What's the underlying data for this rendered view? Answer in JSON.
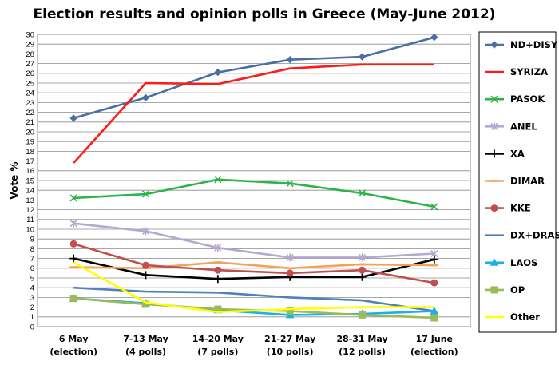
{
  "chart_data": {
    "type": "line",
    "title": "Election results and opinion polls in Greece (May-June 2012)",
    "xlabel": "",
    "ylabel": "Vote %",
    "ylim": [
      0,
      30
    ],
    "yticks": [
      0,
      1,
      2,
      3,
      4,
      5,
      6,
      7,
      8,
      9,
      10,
      11,
      12,
      13,
      14,
      15,
      16,
      17,
      18,
      19,
      20,
      21,
      22,
      23,
      24,
      25,
      26,
      27,
      28,
      29,
      30
    ],
    "grid": true,
    "legend_position": "right",
    "categories": [
      [
        "6 May",
        "(election)"
      ],
      [
        "7-13 May",
        "(4 polls)"
      ],
      [
        "14-20 May",
        "(7 polls)"
      ],
      [
        "21-27 May",
        "(10 polls)"
      ],
      [
        "28-31 May",
        "(12 polls)"
      ],
      [
        "17 June",
        "(election)"
      ]
    ],
    "series": [
      {
        "name": "ND+DISY",
        "color": "#4a6fa5",
        "marker": "diamond",
        "values": [
          21.4,
          23.5,
          26.1,
          27.4,
          27.7,
          29.7
        ]
      },
      {
        "name": "SYRIZA",
        "color": "#ff1a1a",
        "marker": "none",
        "values": [
          16.8,
          25.0,
          24.9,
          26.5,
          26.9,
          26.9
        ]
      },
      {
        "name": "PASOK",
        "color": "#2db34a",
        "marker": "x",
        "values": [
          13.2,
          13.6,
          15.1,
          14.7,
          13.7,
          12.3
        ]
      },
      {
        "name": "ANEL",
        "color": "#b7a8d0",
        "marker": "star",
        "values": [
          10.6,
          9.8,
          8.1,
          7.1,
          7.1,
          7.5
        ]
      },
      {
        "name": "XA",
        "color": "#000000",
        "marker": "plus",
        "values": [
          7.0,
          5.3,
          4.9,
          5.1,
          5.1,
          6.9
        ]
      },
      {
        "name": "DIMAR",
        "color": "#f4a25a",
        "marker": "dash",
        "values": [
          6.1,
          6.0,
          6.6,
          6.0,
          6.4,
          6.3
        ]
      },
      {
        "name": "KKE",
        "color": "#c0504d",
        "marker": "circle",
        "values": [
          8.5,
          6.3,
          5.8,
          5.5,
          5.8,
          4.5
        ]
      },
      {
        "name": "DX+DRASI",
        "color": "#4f81bd",
        "marker": "none",
        "values": [
          4.0,
          3.6,
          3.5,
          3.0,
          2.7,
          1.6
        ]
      },
      {
        "name": "LAOS",
        "color": "#1ab0e8",
        "marker": "triangle",
        "values": [
          2.9,
          2.4,
          1.7,
          1.2,
          1.3,
          1.6
        ]
      },
      {
        "name": "OP",
        "color": "#9bbb59",
        "marker": "square",
        "values": [
          2.9,
          2.3,
          1.8,
          1.6,
          1.2,
          0.9
        ]
      },
      {
        "name": "Other",
        "color": "#ffff00",
        "marker": "none",
        "values": [
          6.6,
          2.5,
          1.5,
          1.8,
          2.0,
          2.0
        ]
      }
    ]
  }
}
